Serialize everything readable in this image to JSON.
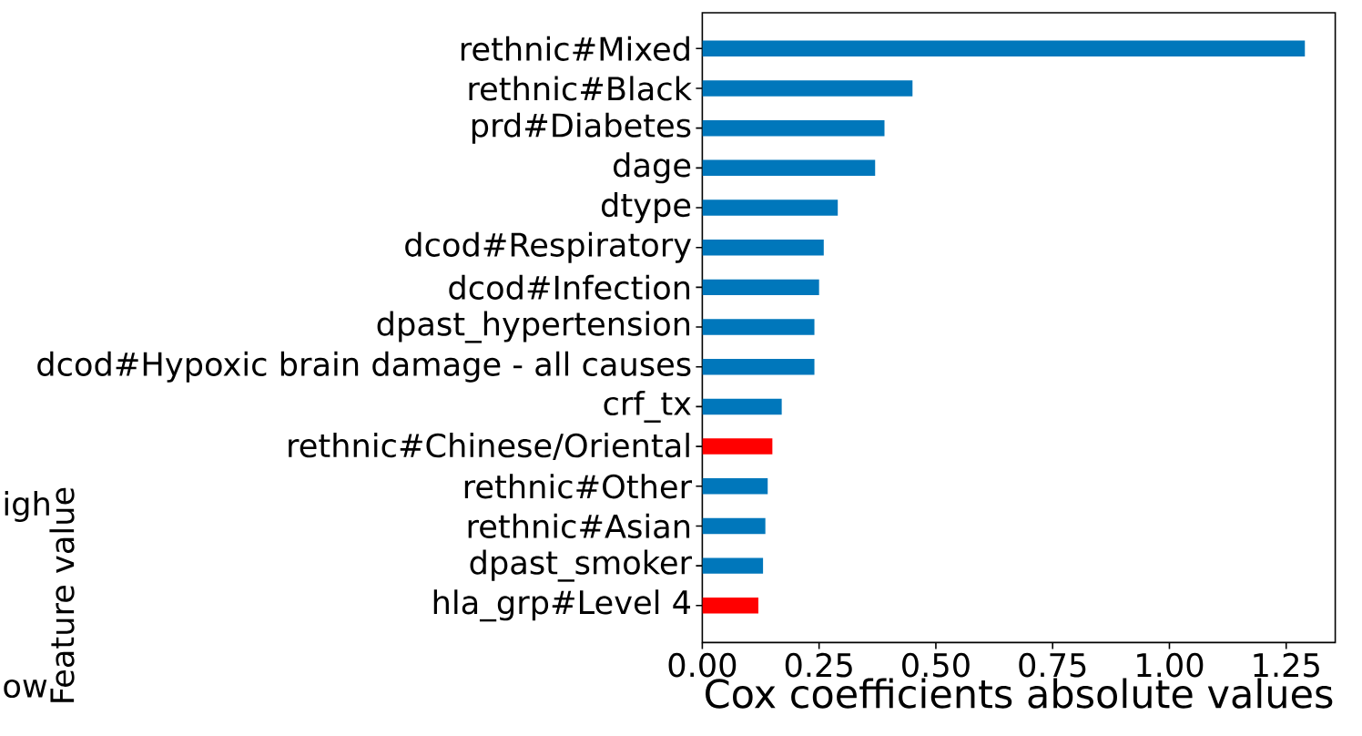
{
  "chart_data": {
    "type": "bar",
    "orientation": "horizontal",
    "categories": [
      "rethnic#Mixed",
      "rethnic#Black",
      "prd#Diabetes",
      "dage",
      "dtype",
      "dcod#Respiratory",
      "dcod#Infection",
      "dpast_hypertension",
      "dcod#Hypoxic brain damage - all causes",
      "crf_tx",
      "rethnic#Chinese/Oriental",
      "rethnic#Other",
      "rethnic#Asian",
      "dpast_smoker",
      "hla_grp#Level 4"
    ],
    "values": [
      1.29,
      0.45,
      0.39,
      0.37,
      0.29,
      0.26,
      0.25,
      0.24,
      0.24,
      0.17,
      0.15,
      0.14,
      0.135,
      0.13,
      0.12
    ],
    "colors": [
      "#0077bb",
      "#0077bb",
      "#0077bb",
      "#0077bb",
      "#0077bb",
      "#0077bb",
      "#0077bb",
      "#0077bb",
      "#0077bb",
      "#0077bb",
      "#ff0000",
      "#0077bb",
      "#0077bb",
      "#0077bb",
      "#ff0000"
    ],
    "xlim": [
      0,
      1.355
    ],
    "xticks": [
      {
        "value": 0,
        "label": "0.00"
      },
      {
        "value": 0.25,
        "label": "0.25"
      },
      {
        "value": 0.5,
        "label": "0.50"
      },
      {
        "value": 0.75,
        "label": "0.75"
      },
      {
        "value": 1,
        "label": "1.00"
      },
      {
        "value": 1.25,
        "label": "1.25"
      }
    ],
    "xlabel": "Cox coefficients absolute values",
    "annotations": [
      "igh",
      "ow",
      "Feature value"
    ]
  }
}
